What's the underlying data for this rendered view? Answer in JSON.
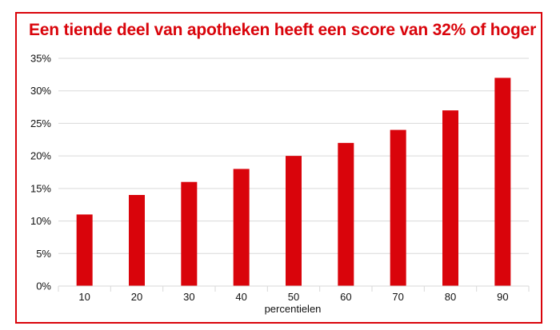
{
  "chart_data": {
    "type": "bar",
    "title": "Een tiende deel van apotheken heeft een score van 32% of hoger",
    "xlabel": "percentielen",
    "ylabel": "",
    "categories": [
      "10",
      "20",
      "30",
      "40",
      "50",
      "60",
      "70",
      "80",
      "90"
    ],
    "values": [
      11,
      14,
      16,
      18,
      20,
      22,
      24,
      27,
      32
    ],
    "ylim": [
      0,
      35
    ],
    "yticks": [
      0,
      5,
      10,
      15,
      20,
      25,
      30,
      35
    ],
    "ytick_labels": [
      "0%",
      "5%",
      "10%",
      "15%",
      "20%",
      "25%",
      "30%",
      "35%"
    ],
    "grid": true,
    "legend": "none",
    "colors": {
      "bar": "#d9040b",
      "frame": "#d9040b",
      "title": "#d9040b",
      "grid": "#d9d9d9"
    }
  }
}
